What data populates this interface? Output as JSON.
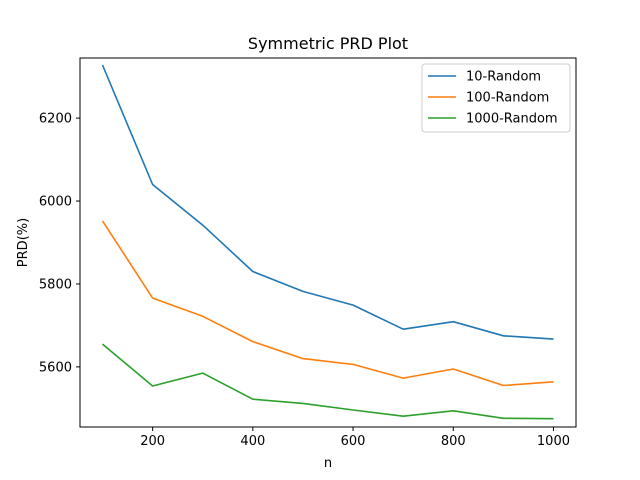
{
  "chart_data": {
    "type": "line",
    "title": "Symmetric PRD Plot",
    "xlabel": "n",
    "ylabel": "PRD(%)",
    "x": [
      100,
      200,
      300,
      400,
      500,
      600,
      700,
      800,
      900,
      1000
    ],
    "xlim": [
      55,
      1045
    ],
    "ylim": [
      5455,
      6345
    ],
    "xticks": [
      200,
      400,
      600,
      800,
      1000
    ],
    "yticks": [
      5600,
      5800,
      6000,
      6200
    ],
    "grid": false,
    "legend_position": "top-right",
    "series": [
      {
        "name": "10-Random",
        "color": "#1f77b4",
        "values": [
          6328,
          6040,
          5942,
          5830,
          5782,
          5749,
          5691,
          5709,
          5675,
          5667
        ]
      },
      {
        "name": "100-Random",
        "color": "#ff7f0e",
        "values": [
          5952,
          5766,
          5722,
          5661,
          5620,
          5606,
          5573,
          5595,
          5555,
          5564
        ]
      },
      {
        "name": "1000-Random",
        "color": "#2ca02c",
        "values": [
          5655,
          5554,
          5585,
          5522,
          5512,
          5496,
          5481,
          5494,
          5476,
          5475
        ]
      }
    ]
  }
}
